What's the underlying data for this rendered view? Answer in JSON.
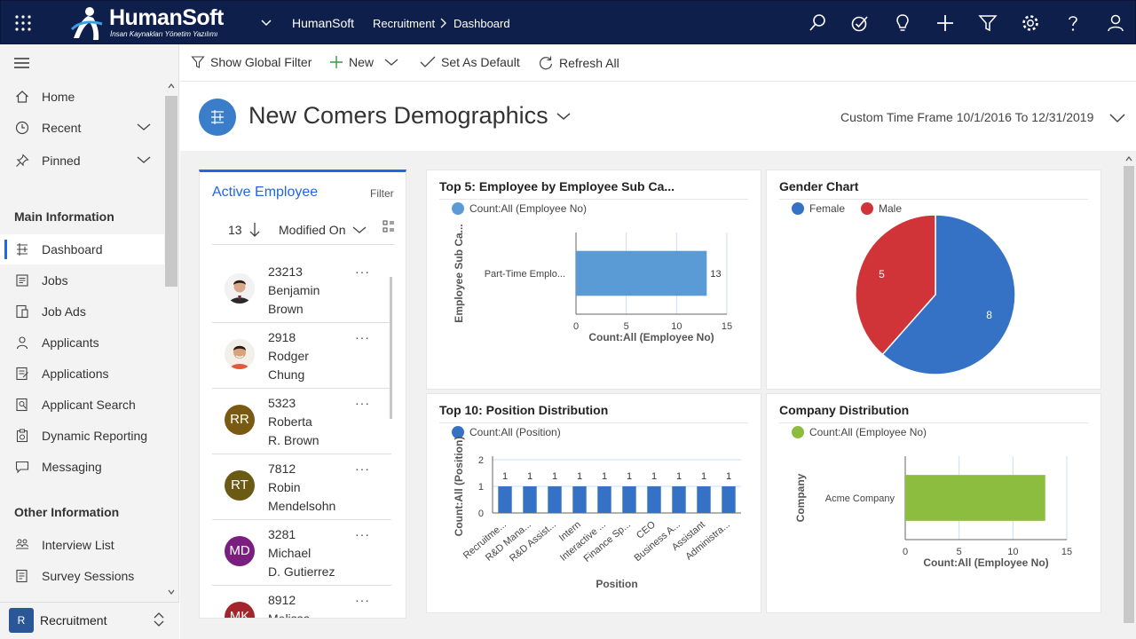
{
  "topbar": {
    "brand": "HumanSoft",
    "brand_tagline": "İnsan Kaynakları Yönetim Yazılımı",
    "env_name": "HumanSoft",
    "breadcrumb": [
      "Recruitment",
      "Dashboard"
    ],
    "icons": [
      "search-icon",
      "task-icon",
      "lightbulb-icon",
      "plus-icon",
      "filter-icon",
      "settings-icon",
      "help-icon",
      "user-icon"
    ]
  },
  "sidebar": {
    "top_items": [
      {
        "label": "Home",
        "icon": "home-icon"
      },
      {
        "label": "Recent",
        "icon": "clock-icon"
      },
      {
        "label": "Pinned",
        "icon": "pin-icon"
      }
    ],
    "main_header": "Main Information",
    "main_items": [
      {
        "label": "Dashboard",
        "icon": "dashboard-icon",
        "active": true
      },
      {
        "label": "Jobs",
        "icon": "jobs-icon"
      },
      {
        "label": "Job Ads",
        "icon": "job-ads-icon"
      },
      {
        "label": "Applicants",
        "icon": "applicants-icon"
      },
      {
        "label": "Applications",
        "icon": "applications-icon"
      },
      {
        "label": "Applicant Search",
        "icon": "applicant-search-icon"
      },
      {
        "label": "Dynamic Reporting",
        "icon": "reporting-icon"
      },
      {
        "label": "Messaging",
        "icon": "messaging-icon"
      }
    ],
    "other_header": "Other Information",
    "other_items": [
      {
        "label": "Interview List",
        "icon": "interview-icon"
      },
      {
        "label": "Survey Sessions",
        "icon": "survey-icon"
      }
    ],
    "area": {
      "badge": "R",
      "label": "Recruitment"
    }
  },
  "commands": {
    "global_filter": "Show Global Filter",
    "new": "New",
    "set_default": "Set As Default",
    "refresh": "Refresh All"
  },
  "header": {
    "title": "New Comers Demographics",
    "time_frame": "Custom Time Frame 10/1/2016 To 12/31/2019"
  },
  "employees": {
    "title": "Active Employee",
    "filter": "Filter",
    "count": "13",
    "sort_field": "Modified On",
    "rows": [
      {
        "id": "23213",
        "first": "Benjamin",
        "last": "Brown",
        "initials": "",
        "color": "#2b2b2b",
        "photo": "photo-1"
      },
      {
        "id": "2918",
        "first": "Rodger",
        "last": "Chung",
        "initials": "",
        "color": "#e9e4dd",
        "photo": "photo-2"
      },
      {
        "id": "5323",
        "first": "Roberta",
        "last": "R. Brown",
        "initials": "RR",
        "color": "#7a5a12",
        "photo": ""
      },
      {
        "id": "7812",
        "first": "Robin",
        "last": "Mendelsohn",
        "initials": "RT",
        "color": "#6b5a14",
        "photo": ""
      },
      {
        "id": "3281",
        "first": "Michael",
        "last": "D. Gutierrez",
        "initials": "MD",
        "color": "#7a1f80",
        "photo": ""
      },
      {
        "id": "8912",
        "first": "Melissa",
        "last": "",
        "initials": "MK",
        "color": "#a4262c",
        "photo": ""
      }
    ]
  },
  "chart_data": [
    {
      "type": "bar",
      "orientation": "horizontal",
      "title": "Top 5: Employee by Employee Sub Ca...",
      "legend": "Count:All (Employee No)",
      "legend_color": "#5b9bd5",
      "categories": [
        "Part-Time Emplo..."
      ],
      "values": [
        13
      ],
      "data_labels": [
        "13"
      ],
      "xlabel": "Count:All (Employee No)",
      "ylabel": "Employee Sub Ca...",
      "xlim": [
        0,
        15
      ],
      "xticks": [
        "0",
        "5",
        "10",
        "15"
      ]
    },
    {
      "type": "pie",
      "title": "Gender Chart",
      "categories": [
        "Female",
        "Male"
      ],
      "values": [
        8,
        5
      ],
      "data_labels": [
        "8",
        "5"
      ],
      "colors": [
        "#3572c6",
        "#d13438"
      ]
    },
    {
      "type": "bar",
      "title": "Top 10: Position Distribution",
      "legend": "Count:All (Position)",
      "legend_color": "#3572c6",
      "categories": [
        "Recruitme...",
        "R&D Mana...",
        "R&D Assist...",
        "Intern",
        "Interactive ...",
        "Finance Sp...",
        "CEO",
        "Business A...",
        "Assistant",
        "Administra..."
      ],
      "values": [
        1,
        1,
        1,
        1,
        1,
        1,
        1,
        1,
        1,
        1
      ],
      "data_labels": [
        "1",
        "1",
        "1",
        "1",
        "1",
        "1",
        "1",
        "1",
        "1",
        "1"
      ],
      "xlabel": "Position",
      "ylabel": "Count:All (Position)",
      "ylim": [
        0,
        2
      ],
      "yticks": [
        "0",
        "1",
        "2"
      ]
    },
    {
      "type": "bar",
      "orientation": "horizontal",
      "title": "Company Distribution",
      "legend": "Count:All (Employee No)",
      "legend_color": "#8cbd3f",
      "categories": [
        "Acme Company"
      ],
      "values": [
        13
      ],
      "xlabel": "Count:All (Employee No)",
      "ylabel": "Company",
      "xlim": [
        0,
        15
      ],
      "xticks": [
        "0",
        "5",
        "10",
        "15"
      ]
    }
  ]
}
